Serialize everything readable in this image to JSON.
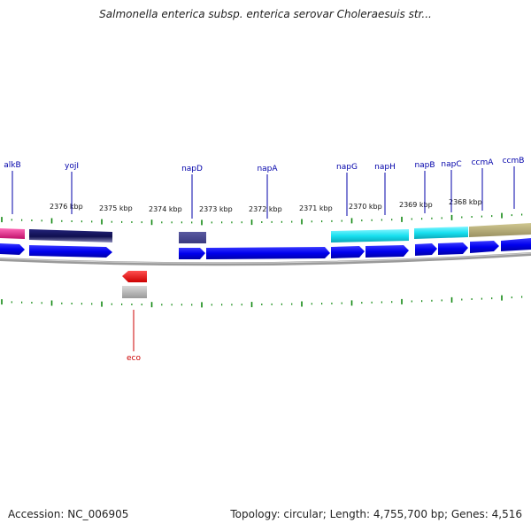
{
  "title": "Salmonella enterica subsp. enterica serovar Choleraesuis str...",
  "footer": {
    "accession": "Accession: NC_006905",
    "summary": "Topology: circular; Length: 4,755,700 bp; Genes: 4,516"
  },
  "ticks": [
    "2376 kbp",
    "2375 kbp",
    "2374 kbp",
    "2373 kbp",
    "2372 kbp",
    "2371 kbp",
    "2370 kbp",
    "2369 kbp",
    "2368 kbp"
  ],
  "genes_top": [
    "alkB",
    "yojI",
    "napD",
    "napA",
    "napG",
    "napH",
    "napB",
    "napC",
    "ccmA",
    "ccmB"
  ],
  "genes_bottom": [
    "eco"
  ],
  "colors": {
    "gene_arrow": "#0000ee",
    "cog_pink": "#e0208a",
    "cog_navy": "#1a1a6a",
    "cog_slate": "#4a4a90",
    "cog_cyan": "#18e0f0",
    "cog_olive": "#b0a870",
    "rev_arrow": "#ee0000",
    "tick_green": "#118811",
    "label_blue": "#0000aa",
    "label_red": "#cc0000"
  }
}
